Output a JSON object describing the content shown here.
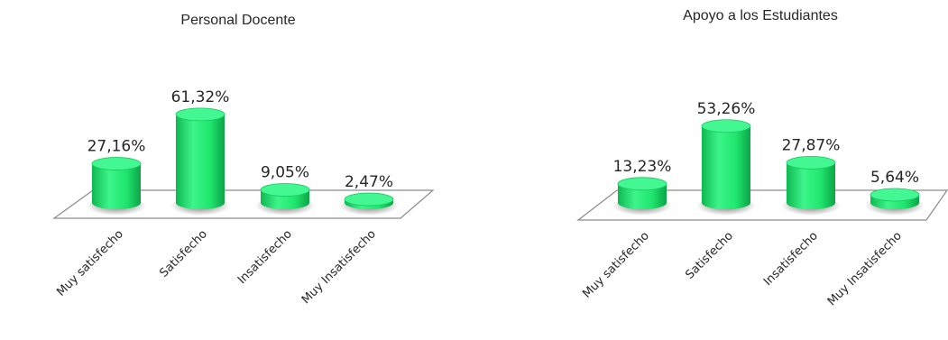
{
  "chart_data": [
    {
      "type": "bar",
      "title": "Personal Docente",
      "categories": [
        "Muy satisfecho",
        "Satisfecho",
        "Insatisfecho",
        "Muy Insatisfecho"
      ],
      "values": [
        27.16,
        61.32,
        9.05,
        2.47
      ],
      "value_labels": [
        "27,16%",
        "61,32%",
        "9,05%",
        "2,47%"
      ],
      "xlabel": "",
      "ylabel": "",
      "ylim": [
        0,
        70
      ],
      "grid": false,
      "legend": "none",
      "style": "3d-cylinder",
      "bar_color": "#1fe66e"
    },
    {
      "type": "bar",
      "title": "Apoyo a los Estudiantes",
      "categories": [
        "Muy satisfecho",
        "Satisfecho",
        "Insatisfecho",
        "Muy Insatisfecho"
      ],
      "values": [
        13.23,
        53.26,
        27.87,
        5.64
      ],
      "value_labels": [
        "13,23%",
        "53,26%",
        "27,87%",
        "5,64%"
      ],
      "xlabel": "",
      "ylabel": "",
      "ylim": [
        0,
        70
      ],
      "grid": false,
      "legend": "none",
      "style": "3d-cylinder",
      "bar_color": "#1fe66e"
    }
  ]
}
